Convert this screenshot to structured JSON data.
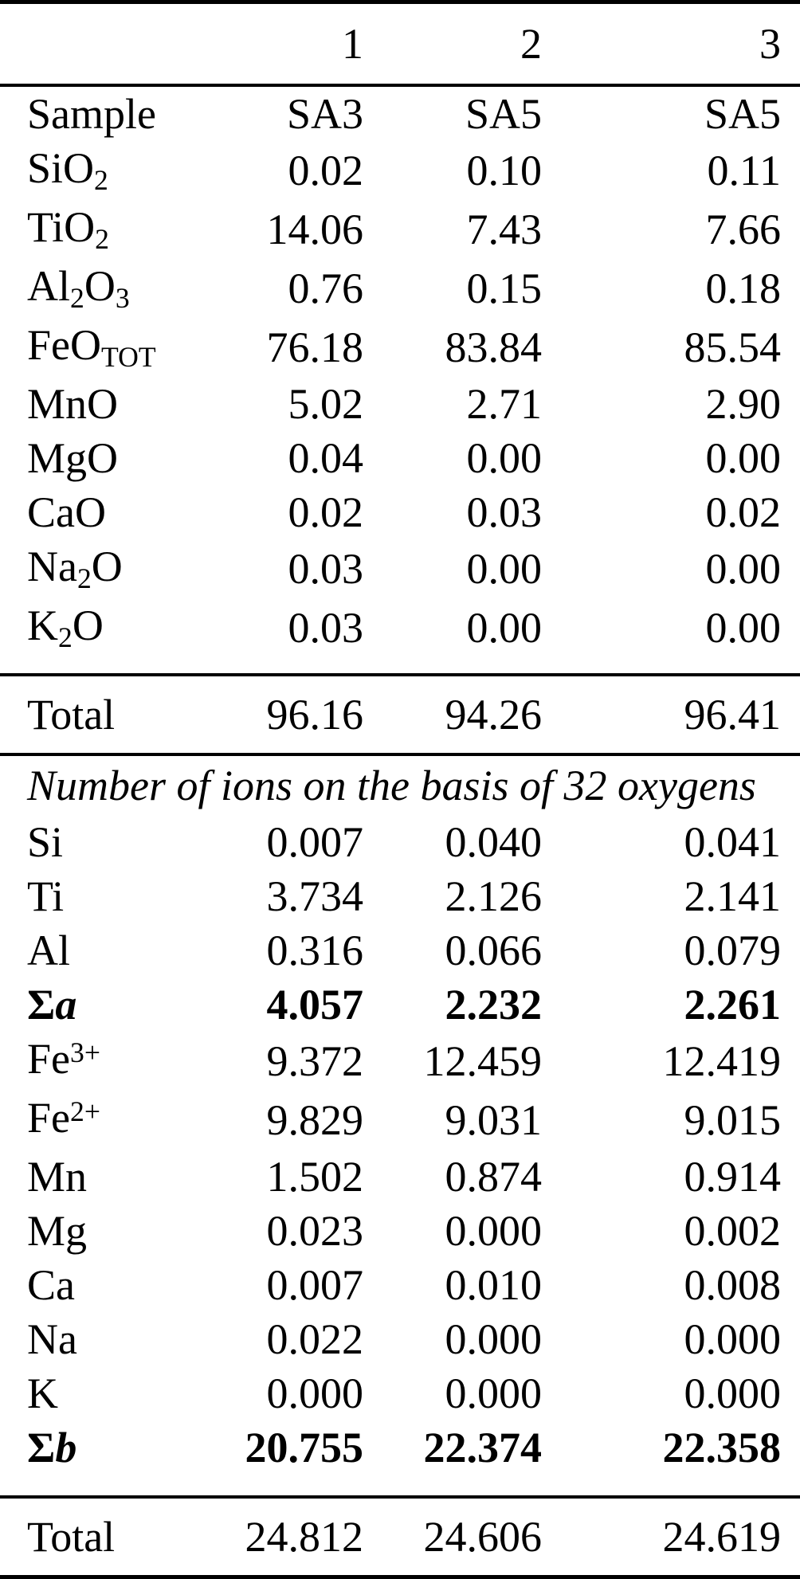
{
  "page": {
    "background_color": "#ffffff",
    "text_color": "#000000"
  },
  "table": {
    "header": {
      "columns": [
        "1",
        "2",
        "3"
      ]
    },
    "oxides": {
      "rows": [
        {
          "label": [
            {
              "text": "Sample"
            }
          ],
          "values": [
            "SA3",
            "SA5",
            "SA5"
          ]
        },
        {
          "label": [
            {
              "text": "SiO"
            },
            {
              "text": "2",
              "style": "sub"
            }
          ],
          "values": [
            "0.02",
            "0.10",
            "0.11"
          ]
        },
        {
          "label": [
            {
              "text": "TiO"
            },
            {
              "text": "2",
              "style": "sub"
            }
          ],
          "values": [
            "14.06",
            "7.43",
            "7.66"
          ]
        },
        {
          "label": [
            {
              "text": "Al"
            },
            {
              "text": "2",
              "style": "sub"
            },
            {
              "text": "O"
            },
            {
              "text": "3",
              "style": "sub"
            }
          ],
          "values": [
            "0.76",
            "0.15",
            "0.18"
          ]
        },
        {
          "label": [
            {
              "text": "FeO"
            },
            {
              "text": "TOT",
              "style": "sub"
            }
          ],
          "values": [
            "76.18",
            "83.84",
            "85.54"
          ]
        },
        {
          "label": [
            {
              "text": "MnO"
            }
          ],
          "values": [
            "5.02",
            "2.71",
            "2.90"
          ]
        },
        {
          "label": [
            {
              "text": "MgO"
            }
          ],
          "values": [
            "0.04",
            "0.00",
            "0.00"
          ]
        },
        {
          "label": [
            {
              "text": "CaO"
            }
          ],
          "values": [
            "0.02",
            "0.03",
            "0.02"
          ]
        },
        {
          "label": [
            {
              "text": "Na"
            },
            {
              "text": "2",
              "style": "sub"
            },
            {
              "text": "O"
            }
          ],
          "values": [
            "0.03",
            "0.00",
            "0.00"
          ]
        },
        {
          "label": [
            {
              "text": "K"
            },
            {
              "text": "2",
              "style": "sub"
            },
            {
              "text": "O"
            }
          ],
          "values": [
            "0.03",
            "0.00",
            "0.00"
          ]
        }
      ],
      "total": {
        "label": "Total",
        "values": [
          "96.16",
          "94.26",
          "96.41"
        ]
      }
    },
    "ions": {
      "section_title": "Number of ions on the basis of 32 oxygens",
      "rows": [
        {
          "label": [
            {
              "text": "Si"
            }
          ],
          "values": [
            "0.007",
            "0.040",
            "0.041"
          ]
        },
        {
          "label": [
            {
              "text": "Ti"
            }
          ],
          "values": [
            "3.734",
            "2.126",
            "2.141"
          ]
        },
        {
          "label": [
            {
              "text": "Al"
            }
          ],
          "values": [
            "0.316",
            "0.066",
            "0.079"
          ]
        },
        {
          "label": [
            {
              "text": "Σ",
              "style": "bold"
            },
            {
              "text": "a",
              "style": "bolditalic"
            }
          ],
          "values": [
            "4.057",
            "2.232",
            "2.261"
          ],
          "bold": true
        },
        {
          "label": [
            {
              "text": "Fe"
            },
            {
              "text": "3+",
              "style": "sup"
            }
          ],
          "values": [
            "9.372",
            "12.459",
            "12.419"
          ]
        },
        {
          "label": [
            {
              "text": "Fe"
            },
            {
              "text": "2+",
              "style": "sup"
            }
          ],
          "values": [
            "9.829",
            "9.031",
            "9.015"
          ]
        },
        {
          "label": [
            {
              "text": "Mn"
            }
          ],
          "values": [
            "1.502",
            "0.874",
            "0.914"
          ]
        },
        {
          "label": [
            {
              "text": "Mg"
            }
          ],
          "values": [
            "0.023",
            "0.000",
            "0.002"
          ]
        },
        {
          "label": [
            {
              "text": "Ca"
            }
          ],
          "values": [
            "0.007",
            "0.010",
            "0.008"
          ]
        },
        {
          "label": [
            {
              "text": "Na"
            }
          ],
          "values": [
            "0.022",
            "0.000",
            "0.000"
          ]
        },
        {
          "label": [
            {
              "text": "K"
            }
          ],
          "values": [
            "0.000",
            "0.000",
            "0.000"
          ]
        },
        {
          "label": [
            {
              "text": "Σ",
              "style": "bold"
            },
            {
              "text": "b",
              "style": "bolditalic"
            }
          ],
          "values": [
            "20.755",
            "22.374",
            "22.358"
          ],
          "bold": true
        }
      ],
      "total": {
        "label": "Total",
        "values": [
          "24.812",
          "24.606",
          "24.619"
        ]
      }
    }
  }
}
